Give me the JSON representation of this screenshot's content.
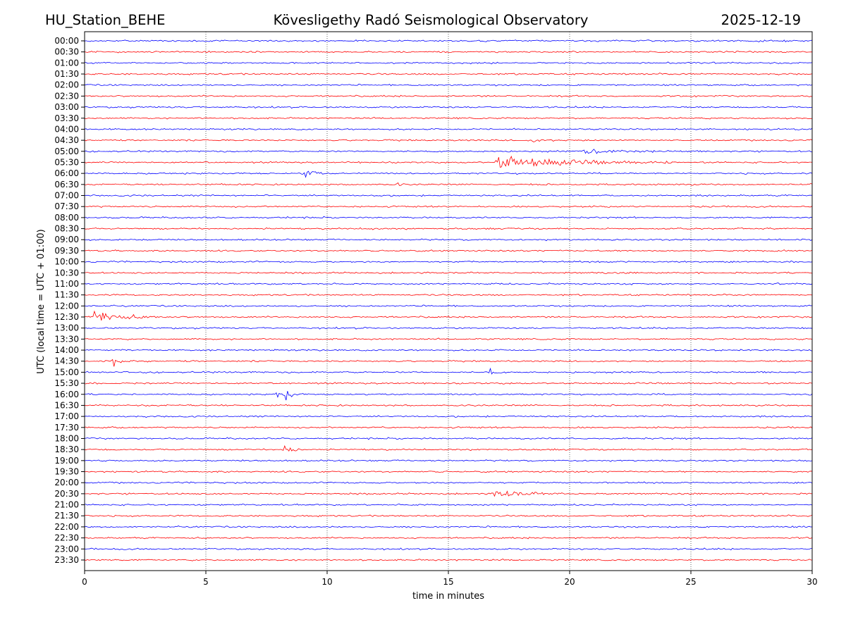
{
  "header": {
    "station": "HU_Station_BEHE",
    "observatory": "Kövesligethy Radó Seismological Observatory",
    "date": "2025-12-19"
  },
  "chart_data": {
    "type": "line",
    "title": "Kövesligethy Radó Seismological Observatory",
    "xlabel": "time in minutes",
    "ylabel": "UTC (local time = UTC + 01:00)",
    "xlim": [
      0,
      30
    ],
    "xticks": [
      "0",
      "5",
      "10",
      "15",
      "20",
      "25",
      "30"
    ],
    "grid": "vertical dotted lines at 5, 10, 15, 20, 25 minutes",
    "series_colors": {
      "even_rows": "#0000ff",
      "odd_rows": "#ff0000"
    },
    "rows": [
      {
        "label": "00:00",
        "events": [
          {
            "t": 27.8,
            "amp": 0.25,
            "dur": 0.8
          }
        ]
      },
      {
        "label": "00:30",
        "events": []
      },
      {
        "label": "01:00",
        "events": []
      },
      {
        "label": "01:30",
        "events": []
      },
      {
        "label": "02:00",
        "events": []
      },
      {
        "label": "02:30",
        "events": []
      },
      {
        "label": "03:00",
        "events": []
      },
      {
        "label": "03:30",
        "events": []
      },
      {
        "label": "04:00",
        "events": []
      },
      {
        "label": "04:30",
        "events": [
          {
            "t": 18.4,
            "amp": 0.3,
            "dur": 0.8
          }
        ]
      },
      {
        "label": "05:00",
        "events": [
          {
            "t": 20.5,
            "amp": 0.35,
            "dur": 3.0
          }
        ]
      },
      {
        "label": "05:30",
        "events": [
          {
            "t": 16.9,
            "amp": 1.0,
            "dur": 5.0
          }
        ]
      },
      {
        "label": "06:00",
        "events": [
          {
            "t": 9.1,
            "amp": 1.4,
            "dur": 0.5
          }
        ]
      },
      {
        "label": "06:30",
        "events": [
          {
            "t": 12.9,
            "amp": 0.4,
            "dur": 0.2
          }
        ]
      },
      {
        "label": "07:00",
        "events": []
      },
      {
        "label": "07:30",
        "events": []
      },
      {
        "label": "08:00",
        "events": []
      },
      {
        "label": "08:30",
        "events": [
          {
            "t": 11.8,
            "amp": 0.3,
            "dur": 0.3
          }
        ]
      },
      {
        "label": "09:00",
        "events": []
      },
      {
        "label": "09:30",
        "events": []
      },
      {
        "label": "10:00",
        "events": []
      },
      {
        "label": "10:30",
        "events": []
      },
      {
        "label": "11:00",
        "events": [
          {
            "t": 16.8,
            "amp": 0.3,
            "dur": 0.3
          }
        ]
      },
      {
        "label": "11:30",
        "events": []
      },
      {
        "label": "12:00",
        "events": []
      },
      {
        "label": "12:30",
        "events": [
          {
            "t": 0.4,
            "amp": 1.1,
            "dur": 1.8
          }
        ]
      },
      {
        "label": "13:00",
        "events": []
      },
      {
        "label": "13:30",
        "events": []
      },
      {
        "label": "14:00",
        "events": []
      },
      {
        "label": "14:30",
        "events": [
          {
            "t": 1.1,
            "amp": 1.0,
            "dur": 0.4
          }
        ]
      },
      {
        "label": "15:00",
        "events": [
          {
            "t": 16.7,
            "amp": 0.7,
            "dur": 0.3
          }
        ]
      },
      {
        "label": "15:30",
        "events": []
      },
      {
        "label": "16:00",
        "events": [
          {
            "t": 7.9,
            "amp": 1.0,
            "dur": 0.3
          },
          {
            "t": 8.3,
            "amp": 1.0,
            "dur": 0.4
          }
        ]
      },
      {
        "label": "16:30",
        "events": []
      },
      {
        "label": "17:00",
        "events": []
      },
      {
        "label": "17:30",
        "events": []
      },
      {
        "label": "18:00",
        "events": []
      },
      {
        "label": "18:30",
        "events": [
          {
            "t": 8.2,
            "amp": 1.1,
            "dur": 0.5
          }
        ]
      },
      {
        "label": "19:00",
        "events": []
      },
      {
        "label": "19:30",
        "events": []
      },
      {
        "label": "20:00",
        "events": []
      },
      {
        "label": "20:30",
        "events": [
          {
            "t": 16.9,
            "amp": 0.55,
            "dur": 2.0
          }
        ]
      },
      {
        "label": "21:00",
        "events": []
      },
      {
        "label": "21:30",
        "events": []
      },
      {
        "label": "22:00",
        "events": []
      },
      {
        "label": "22:30",
        "events": []
      },
      {
        "label": "23:00",
        "events": []
      },
      {
        "label": "23:30",
        "events": []
      }
    ]
  }
}
